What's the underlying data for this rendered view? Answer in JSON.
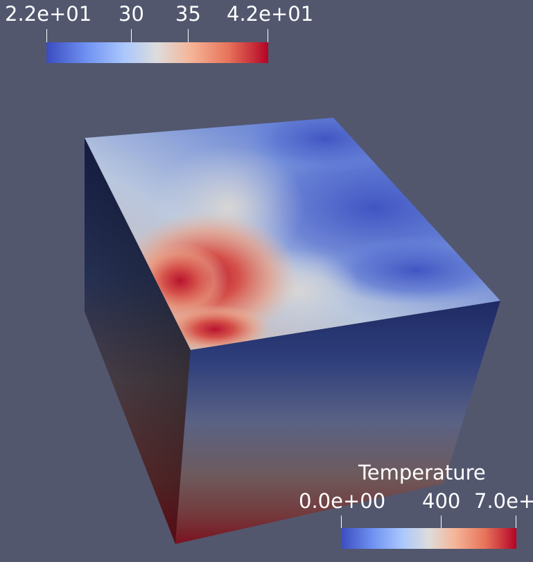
{
  "scene": {
    "background": "#52576e",
    "object": "cube"
  },
  "top_legend": {
    "title": "",
    "labels": [
      "2.2e+01",
      "30",
      "35",
      "4.2e+01"
    ],
    "colormap": "cool-warm"
  },
  "bottom_legend": {
    "title": "Temperature",
    "labels": [
      "0.0e+00",
      "400",
      "7.0e+"
    ],
    "colormap": "cool-warm"
  },
  "colors": {
    "cool": "#3b4cc0",
    "neutral": "#dddcdc",
    "warm": "#b40426",
    "dark_blue": "#1d2760"
  }
}
